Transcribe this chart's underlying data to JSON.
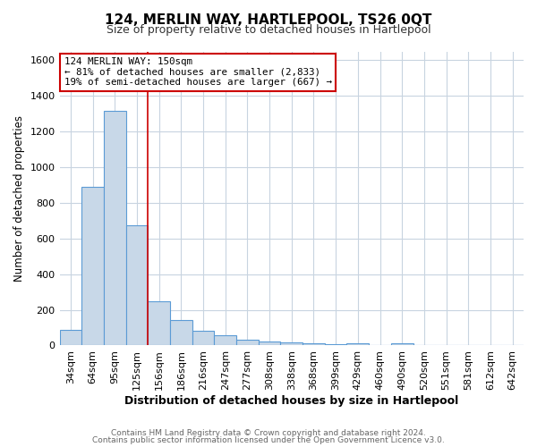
{
  "title": "124, MERLIN WAY, HARTLEPOOL, TS26 0QT",
  "subtitle": "Size of property relative to detached houses in Hartlepool",
  "xlabel": "Distribution of detached houses by size in Hartlepool",
  "ylabel": "Number of detached properties",
  "bar_labels": [
    "34sqm",
    "64sqm",
    "95sqm",
    "125sqm",
    "156sqm",
    "186sqm",
    "216sqm",
    "247sqm",
    "277sqm",
    "308sqm",
    "338sqm",
    "368sqm",
    "399sqm",
    "429sqm",
    "460sqm",
    "490sqm",
    "520sqm",
    "551sqm",
    "581sqm",
    "612sqm",
    "642sqm"
  ],
  "bar_values": [
    88,
    891,
    1318,
    672,
    247,
    143,
    82,
    57,
    30,
    20,
    15,
    10,
    8,
    14,
    0,
    14,
    0,
    0,
    0,
    0,
    0
  ],
  "bar_color": "#c8d8e8",
  "bar_edge_color": "#5b9bd5",
  "vline_color": "#cc0000",
  "vline_x_idx": 4,
  "annotation_text": "124 MERLIN WAY: 150sqm\n← 81% of detached houses are smaller (2,833)\n19% of semi-detached houses are larger (667) →",
  "annotation_box_color": "#ffffff",
  "annotation_box_edge_color": "#cc0000",
  "ylim": [
    0,
    1650
  ],
  "yticks": [
    0,
    200,
    400,
    600,
    800,
    1000,
    1200,
    1400,
    1600
  ],
  "footer1": "Contains HM Land Registry data © Crown copyright and database right 2024.",
  "footer2": "Contains public sector information licensed under the Open Government Licence v3.0.",
  "bg_color": "#ffffff",
  "grid_color": "#c8d4e0",
  "title_fontsize": 11,
  "subtitle_fontsize": 9
}
